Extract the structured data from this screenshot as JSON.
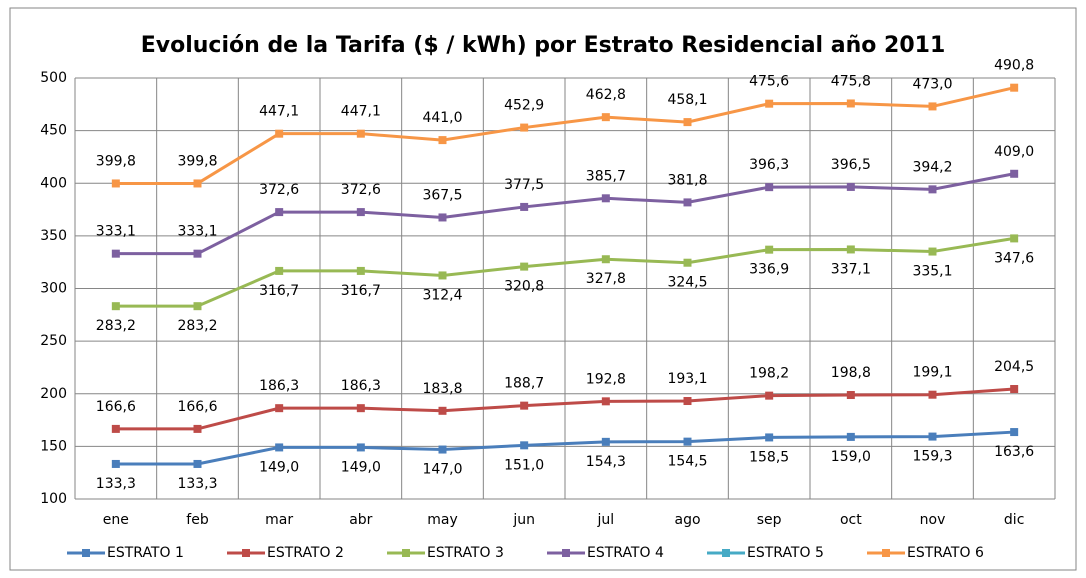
{
  "chart_data": {
    "type": "line",
    "title": "Evolución de la Tarifa ($ / kWh) por Estrato Residencial año 2011",
    "categories": [
      "ene",
      "feb",
      "mar",
      "abr",
      "may",
      "jun",
      "jul",
      "ago",
      "sep",
      "oct",
      "nov",
      "dic"
    ],
    "ylim": [
      100,
      500
    ],
    "yticks": [
      100,
      150,
      200,
      250,
      300,
      350,
      400,
      450,
      500
    ],
    "grid": true,
    "legend": "bottom",
    "series": [
      {
        "name": "ESTRATO 1",
        "color": "#4a7ebb",
        "values": [
          133.3,
          133.3,
          149.0,
          149.0,
          147.0,
          151.0,
          154.3,
          154.5,
          158.5,
          159.0,
          159.3,
          163.6
        ],
        "value_labels": [
          "133,3",
          "133,3",
          "149,0",
          "149,0",
          "147,0",
          "151,0",
          "154,3",
          "154,5",
          "158,5",
          "159,0",
          "159,3",
          "163,6"
        ]
      },
      {
        "name": "ESTRATO 2",
        "color": "#be4b48",
        "values": [
          166.6,
          166.6,
          186.3,
          186.3,
          183.8,
          188.7,
          192.8,
          193.1,
          198.2,
          198.8,
          199.1,
          204.5
        ],
        "value_labels": [
          "166,6",
          "166,6",
          "186,3",
          "186,3",
          "183,8",
          "188,7",
          "192,8",
          "193,1",
          "198,2",
          "198,8",
          "199,1",
          "204,5"
        ]
      },
      {
        "name": "ESTRATO 3",
        "color": "#98b954",
        "values": [
          283.2,
          283.2,
          316.7,
          316.7,
          312.4,
          320.8,
          327.8,
          324.5,
          336.9,
          337.1,
          335.1,
          347.6
        ],
        "value_labels": [
          "283,2",
          "283,2",
          "316,7",
          "316,7",
          "312,4",
          "320,8",
          "327,8",
          "324,5",
          "336,9",
          "337,1",
          "335,1",
          "347,6"
        ]
      },
      {
        "name": "ESTRATO 4",
        "color": "#7d60a0",
        "values": [
          333.1,
          333.1,
          372.6,
          372.6,
          367.5,
          377.5,
          385.7,
          381.8,
          396.3,
          396.5,
          394.2,
          409.0
        ],
        "value_labels": [
          "333,1",
          "333,1",
          "372,6",
          "372,6",
          "367,5",
          "377,5",
          "385,7",
          "381,8",
          "396,3",
          "396,5",
          "394,2",
          "409,0"
        ]
      },
      {
        "name": "ESTRATO 5",
        "color": "#46aac5",
        "values": [
          null,
          null,
          null,
          null,
          null,
          null,
          null,
          null,
          null,
          null,
          null,
          null
        ]
      },
      {
        "name": "ESTRATO 6",
        "color": "#f79646",
        "values": [
          399.8,
          399.8,
          447.1,
          447.1,
          441.0,
          452.9,
          462.8,
          458.1,
          475.6,
          475.8,
          473.0,
          490.8
        ],
        "value_labels": [
          "399,8",
          "399,8",
          "447,1",
          "447,1",
          "441,0",
          "452,9",
          "462,8",
          "458,1",
          "475,6",
          "475,8",
          "473,0",
          "490,8"
        ]
      }
    ]
  }
}
